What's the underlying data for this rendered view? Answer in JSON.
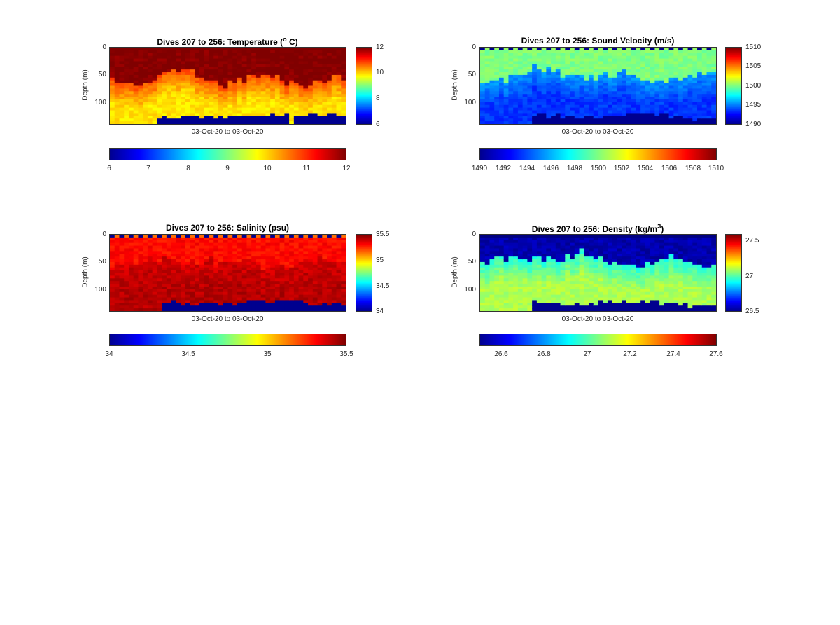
{
  "chart_data": [
    {
      "type": "heatmap",
      "title_prefix": "Dives 207 to 256: Temperature (",
      "title_sup": "o",
      "title_suffix": " C)",
      "ylabel": "Depth (m)",
      "xlabel": "03-Oct-20 to 03-Oct-20",
      "yticks": [
        "0",
        "50",
        "100"
      ],
      "ylim": [
        0,
        140
      ],
      "clim": [
        6,
        12
      ],
      "cbar_right_ticks": [
        "12",
        "10",
        "8",
        "6"
      ],
      "cbar_bottom_ticks": [
        "6",
        "7",
        "8",
        "9",
        "10",
        "11",
        "12"
      ],
      "profile": {
        "surface": 12,
        "upper": 12,
        "mid": 10.8,
        "deep": 9.9,
        "mixed_depth": 60,
        "surface_cap": false
      },
      "bottom_depth_m": [
        140,
        140,
        140,
        140,
        140,
        140,
        140,
        140,
        140,
        140,
        140,
        140,
        140,
        140,
        140,
        140,
        140,
        140,
        140,
        140,
        140,
        140,
        140,
        140,
        140,
        140,
        140,
        140,
        140,
        140,
        140,
        140,
        140,
        140,
        140,
        140,
        140,
        140,
        140,
        140,
        140,
        140,
        140,
        140,
        140,
        140,
        140,
        140,
        140,
        140
      ]
    },
    {
      "type": "heatmap",
      "title_prefix": "Dives 207 to 256: Sound Velocity (m/s)",
      "title_sup": "",
      "title_suffix": "",
      "ylabel": "Depth (m)",
      "xlabel": "03-Oct-20 to 03-Oct-20",
      "yticks": [
        "0",
        "50",
        "100"
      ],
      "ylim": [
        0,
        140
      ],
      "clim": [
        1490,
        1510
      ],
      "cbar_right_ticks": [
        "1510",
        "1505",
        "1500",
        "1495",
        "1490"
      ],
      "cbar_bottom_ticks": [
        "1490",
        "1492",
        "1494",
        "1496",
        "1498",
        "1500",
        "1502",
        "1504",
        "1506",
        "1508",
        "1510"
      ],
      "profile": {
        "surface": 1500.5,
        "upper": 1500,
        "mid": 1495.5,
        "deep": 1493.5,
        "mixed_depth": 55,
        "surface_cap": true
      },
      "bottom_depth_m": []
    },
    {
      "type": "heatmap",
      "title_prefix": "Dives 207 to 256: Salinity (psu)",
      "title_sup": "",
      "title_suffix": "",
      "ylabel": "Depth (m)",
      "xlabel": "03-Oct-20 to 03-Oct-20",
      "yticks": [
        "0",
        "50",
        "100"
      ],
      "ylim": [
        0,
        140
      ],
      "clim": [
        34,
        35.5
      ],
      "cbar_right_ticks": [
        "35.5",
        "35",
        "34.5",
        "34"
      ],
      "cbar_bottom_ticks": [
        "34",
        "34.5",
        "35",
        "35.5"
      ],
      "profile": {
        "surface": 35.15,
        "upper": 35.3,
        "mid": 35.38,
        "deep": 35.42,
        "mixed_depth": 55,
        "surface_cap": true
      },
      "bottom_depth_m": []
    },
    {
      "type": "heatmap",
      "title_prefix": "Dives 207 to 256: Density (kg/m",
      "title_sup": "3",
      "title_suffix": ")",
      "ylabel": "Depth (m)",
      "xlabel": "03-Oct-20 to 03-Oct-20",
      "yticks": [
        "0",
        "50",
        "100"
      ],
      "ylim": [
        0,
        140
      ],
      "clim": [
        26.5,
        27.6
      ],
      "cbar_right_ticks": [
        "27.5",
        "27",
        "26.5"
      ],
      "cbar_bottom_ticks": [
        "26.6",
        "26.8",
        "27",
        "27.2",
        "27.4",
        "27.6"
      ],
      "profile": {
        "surface": 26.5,
        "upper": 26.55,
        "mid": 26.95,
        "deep": 27.1,
        "mixed_depth": 50,
        "surface_cap": false
      },
      "bottom_depth_m": []
    }
  ]
}
